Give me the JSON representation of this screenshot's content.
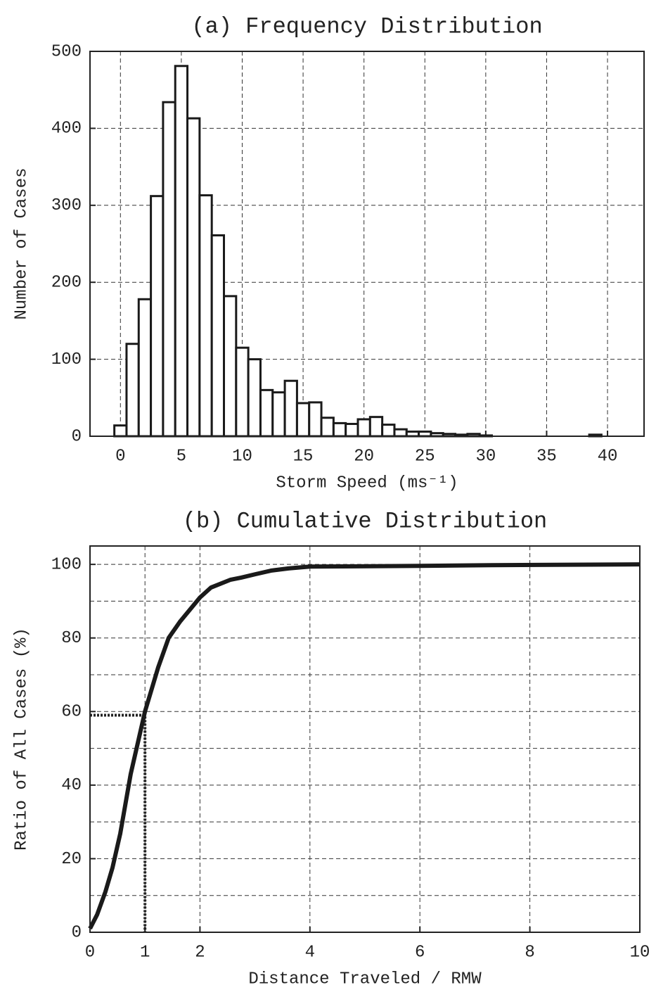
{
  "chart_data": [
    {
      "type": "histogram",
      "title": "(a) Frequency Distribution",
      "xlabel": "Storm Speed (ms⁻¹)",
      "ylabel": "Number of Cases",
      "bins": [
        -0.5,
        0.5,
        1.5,
        2.5,
        3.5,
        4.5,
        5.5,
        6.5,
        7.5,
        8.5,
        9.5,
        10.5,
        11.5,
        12.5,
        13.5,
        14.5,
        15.5,
        16.5,
        17.5,
        18.5,
        19.5,
        20.5,
        21.5,
        22.5,
        23.5,
        24.5,
        25.5,
        26.5,
        27.5,
        28.5,
        29.5,
        30.5,
        31.5,
        32.5,
        33.5,
        34.5,
        35.5,
        36.5,
        37.5,
        38.5,
        39.5
      ],
      "values": [
        14,
        120,
        178,
        312,
        434,
        481,
        413,
        313,
        261,
        182,
        115,
        100,
        60,
        57,
        72,
        43,
        44,
        24,
        17,
        16,
        22,
        25,
        15,
        9,
        6,
        6,
        4,
        3,
        2,
        3,
        1,
        0,
        0,
        0,
        0,
        0,
        0,
        0,
        0,
        2
      ],
      "color": "#ffffff",
      "xlim": [
        -2.5,
        43
      ],
      "xticks": [
        0,
        5,
        10,
        15,
        20,
        25,
        30,
        35,
        40
      ],
      "ylim": [
        0,
        500
      ],
      "yticks": [
        0,
        100,
        200,
        300,
        400,
        500
      ],
      "grid": true
    },
    {
      "type": "line",
      "title": "(b) Cumulative Distribution",
      "xlabel": "Distance Traveled / RMW",
      "ylabel": "Ratio of All Cases (%)",
      "x": [
        0,
        0.13,
        0.28,
        0.41,
        0.55,
        0.74,
        1.0,
        1.24,
        1.43,
        1.64,
        2.0,
        2.2,
        2.55,
        2.75,
        3.0,
        3.29,
        3.61,
        4.0,
        6.0,
        7.3,
        10
      ],
      "values": [
        1,
        4.8,
        11,
        17.6,
        26.8,
        43,
        60,
        72,
        80,
        84.5,
        91,
        93.7,
        95.8,
        96.4,
        97.3,
        98.3,
        98.9,
        99.4,
        99.6,
        99.8,
        100
      ],
      "color": "#1a1a1a",
      "xlim": [
        0,
        10
      ],
      "xticks": [
        0,
        1,
        2,
        4,
        6,
        8,
        10
      ],
      "ylim": [
        0,
        105
      ],
      "yticks": [
        0,
        20,
        40,
        60,
        80,
        100
      ],
      "minor_yticks": [
        10,
        30,
        50,
        70,
        90
      ],
      "grid": true,
      "reference_point": {
        "x": 1,
        "y": 59
      }
    }
  ]
}
